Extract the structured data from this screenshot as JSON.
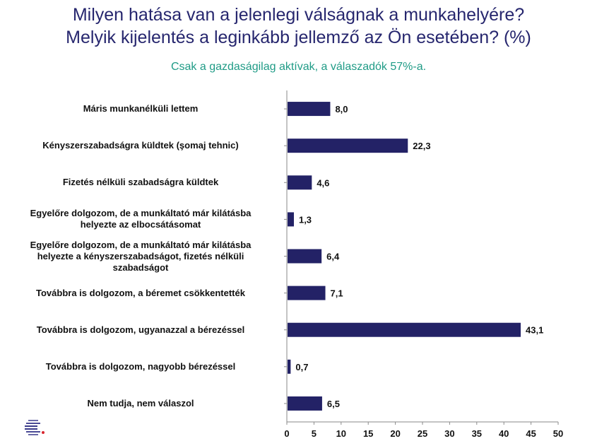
{
  "title_line1": "Milyen hatása van a jelenlegi válságnak a munkahelyére?",
  "title_line2": "Melyik kijelentés a leginkább jellemző az Ön esetében? (%)",
  "subtitle": "Csak a gazdaságilag aktívak, a válaszadók 57%-a.",
  "colors": {
    "bar": "#232266",
    "title": "#26266e",
    "subtitle": "#1f9b86"
  },
  "chart_data": {
    "type": "bar",
    "orientation": "horizontal",
    "categories": [
      "Máris munkanélküli lettem",
      "Kényszerszabadságra küldtek (şomaj tehnic)",
      "Fizetés nélküli szabadságra küldtek",
      "Egyelőre dolgozom, de a munkáltató már kilátásba helyezte az elbocsátásomat",
      "Egyelőre dolgozom, de a munkáltató már kilátásba helyezte a kényszerszabadságot, fizetés nélküli szabadságot",
      "Továbbra is dolgozom, a béremet csökkentették",
      "Továbbra is dolgozom, ugyanazzal a bérezéssel",
      "Továbbra is dolgozom, nagyobb bérezéssel",
      "Nem tudja, nem válaszol"
    ],
    "category_lines": [
      [
        "Máris munkanélküli lettem"
      ],
      [
        "Kényszerszabadságra küldtek (şomaj tehnic)"
      ],
      [
        "Fizetés nélküli szabadságra küldtek"
      ],
      [
        "Egyelőre dolgozom, de a munkáltató már kilátásba",
        "helyezte az elbocsátásomat"
      ],
      [
        "Egyelőre dolgozom, de a munkáltató már kilátásba",
        "helyezte a kényszerszabadságot, fizetés nélküli",
        "szabadságot"
      ],
      [
        "Továbbra is dolgozom, a béremet csökkentették"
      ],
      [
        "Továbbra is dolgozom, ugyanazzal a bérezéssel"
      ],
      [
        "Továbbra is dolgozom, nagyobb bérezéssel"
      ],
      [
        "Nem tudja, nem válaszol"
      ]
    ],
    "values": [
      8.0,
      22.3,
      4.6,
      1.3,
      6.4,
      7.1,
      43.1,
      0.7,
      6.5
    ],
    "value_labels": [
      "8,0",
      "22,3",
      "4,6",
      "1,3",
      "6,4",
      "7,1",
      "43,1",
      "0,7",
      "6,5"
    ],
    "xlim": [
      0,
      50
    ],
    "xticks": [
      "0",
      "5",
      "10",
      "15",
      "20",
      "25",
      "30",
      "35",
      "40",
      "45",
      "50"
    ],
    "grid": false,
    "legend": "none"
  }
}
